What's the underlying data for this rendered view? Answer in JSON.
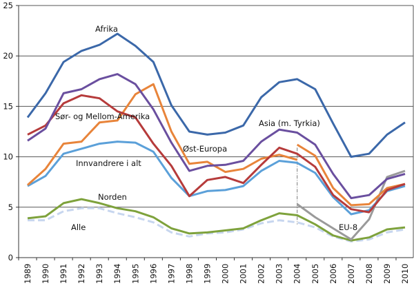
{
  "chart_data": {
    "type": "line",
    "title": "",
    "xlabel": "",
    "ylabel": "",
    "ylim": [
      0,
      25
    ],
    "yticks": [
      0,
      5,
      10,
      15,
      20,
      25
    ],
    "grid": true,
    "legend": "inline labels",
    "x": [
      "1989",
      "1990",
      "1991",
      "1992",
      "1993",
      "1994",
      "1995",
      "1996",
      "1997",
      "1998",
      "1999",
      "2000",
      "2001",
      "2002",
      "2003",
      "2004",
      "2005",
      "2006",
      "2007",
      "2008",
      "2009",
      "2010"
    ],
    "series": [
      {
        "name": "Afrika",
        "color": "#3b68a9",
        "values": [
          13.9,
          16.3,
          19.4,
          20.5,
          21.1,
          22.2,
          21.0,
          19.4,
          15.1,
          12.5,
          12.2,
          12.4,
          13.1,
          15.9,
          17.4,
          17.7,
          16.7,
          13.3,
          10.0,
          10.3,
          12.2,
          13.4
        ]
      },
      {
        "name": "Asia (m. Tyrkia)",
        "color": "#6a4f9f",
        "values": [
          11.6,
          12.8,
          16.3,
          16.7,
          17.7,
          18.2,
          17.2,
          14.7,
          11.4,
          8.6,
          9.1,
          9.2,
          9.6,
          11.5,
          12.7,
          12.4,
          11.2,
          8.3,
          5.9,
          6.2,
          7.8,
          8.3
        ]
      },
      {
        "name": "Sør- og Mellom-Amerika",
        "color": "#b63b3b",
        "values": [
          12.2,
          13.1,
          15.3,
          16.1,
          15.8,
          14.5,
          13.9,
          11.3,
          9.1,
          6.1,
          7.7,
          8.0,
          7.4,
          9.2,
          10.9,
          10.3,
          9.0,
          6.2,
          4.8,
          4.5,
          6.7,
          7.3
        ]
      },
      {
        "name": "Øst-Europa",
        "color": "#e8843a",
        "values": [
          7.2,
          8.8,
          11.3,
          11.5,
          13.4,
          13.6,
          16.2,
          17.2,
          12.5,
          9.3,
          9.5,
          8.5,
          8.8,
          9.8,
          10.2,
          9.7,
          null,
          null,
          null,
          null,
          null,
          null
        ],
        "values_from_2004": [
          null,
          null,
          null,
          null,
          null,
          null,
          null,
          null,
          null,
          null,
          null,
          null,
          null,
          null,
          null,
          11.2,
          10.1,
          6.9,
          5.2,
          5.3,
          6.9,
          7.3
        ]
      },
      {
        "name": "Innvandrere i alt",
        "color": "#5ba0d9",
        "values": [
          7.1,
          8.1,
          10.3,
          10.8,
          11.3,
          11.5,
          11.4,
          10.5,
          7.9,
          6.1,
          6.6,
          6.7,
          7.1,
          8.6,
          9.6,
          9.4,
          8.4,
          6.0,
          4.3,
          4.7,
          6.6,
          7.1
        ]
      },
      {
        "name": "EU-8",
        "color": "#9a9a9a",
        "values": [
          null,
          null,
          null,
          null,
          null,
          null,
          null,
          null,
          null,
          null,
          null,
          null,
          null,
          null,
          null,
          5.3,
          4.0,
          2.9,
          1.8,
          3.8,
          8.0,
          8.6
        ]
      },
      {
        "name": "Norden",
        "color": "#7ea23c",
        "values": [
          3.9,
          4.1,
          5.4,
          5.8,
          5.4,
          4.9,
          4.6,
          4.0,
          2.9,
          2.4,
          2.5,
          2.7,
          2.9,
          3.7,
          4.4,
          4.2,
          3.3,
          2.2,
          1.7,
          2.0,
          2.8,
          3.0
        ]
      },
      {
        "name": "Alle",
        "color": "#c7d6ef",
        "dashed": true,
        "values": [
          3.7,
          3.7,
          4.6,
          4.9,
          4.9,
          4.4,
          4.0,
          3.5,
          2.5,
          2.1,
          2.4,
          2.5,
          2.8,
          3.4,
          3.7,
          3.5,
          3.0,
          2.1,
          1.6,
          1.8,
          2.5,
          2.8
        ]
      }
    ]
  }
}
